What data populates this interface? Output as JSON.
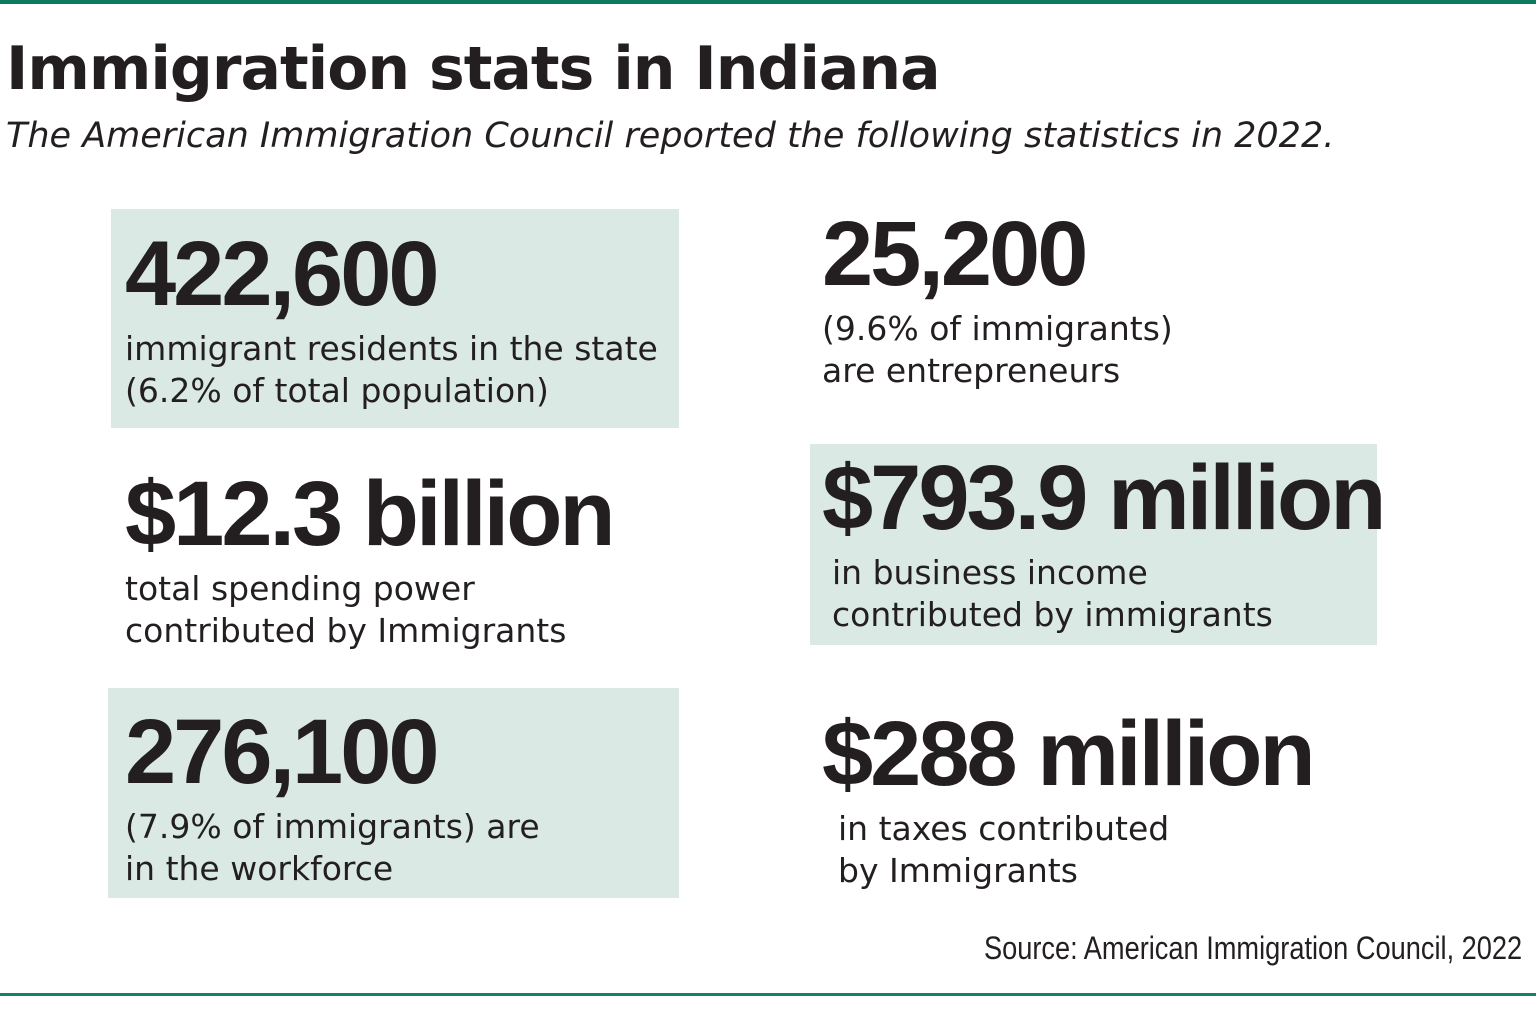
{
  "header": {
    "title": "Immigration stats in Indiana",
    "subtitle": "The American Immigration Council reported the following statistics in 2022."
  },
  "stats": [
    {
      "value": "422,600",
      "line1": "immigrant residents in the state",
      "line2": "(6.2% of total population)",
      "highlighted": true
    },
    {
      "value": "25,200",
      "line1": "(9.6% of immigrants)",
      "line2": "are entrepreneurs",
      "highlighted": false
    },
    {
      "value": "$12.3 billion",
      "line1": "total spending power",
      "line2": "contributed by Immigrants",
      "highlighted": false
    },
    {
      "value": "$793.9 million",
      "line1": "in business income",
      "line2": "contributed by immigrants",
      "highlighted": true
    },
    {
      "value": "276,100",
      "line1": "(7.9% of immigrants)  are",
      "line2": "in the workforce",
      "highlighted": true
    },
    {
      "value": "$288 million",
      "line1": "in taxes contributed",
      "line2": "by Immigrants",
      "highlighted": false
    }
  ],
  "source": "Source: American Immigration Council, 2022",
  "colors": {
    "accent_rule": "#0b7d5e",
    "box_fill": "#dae9e3",
    "text": "#231f20"
  }
}
